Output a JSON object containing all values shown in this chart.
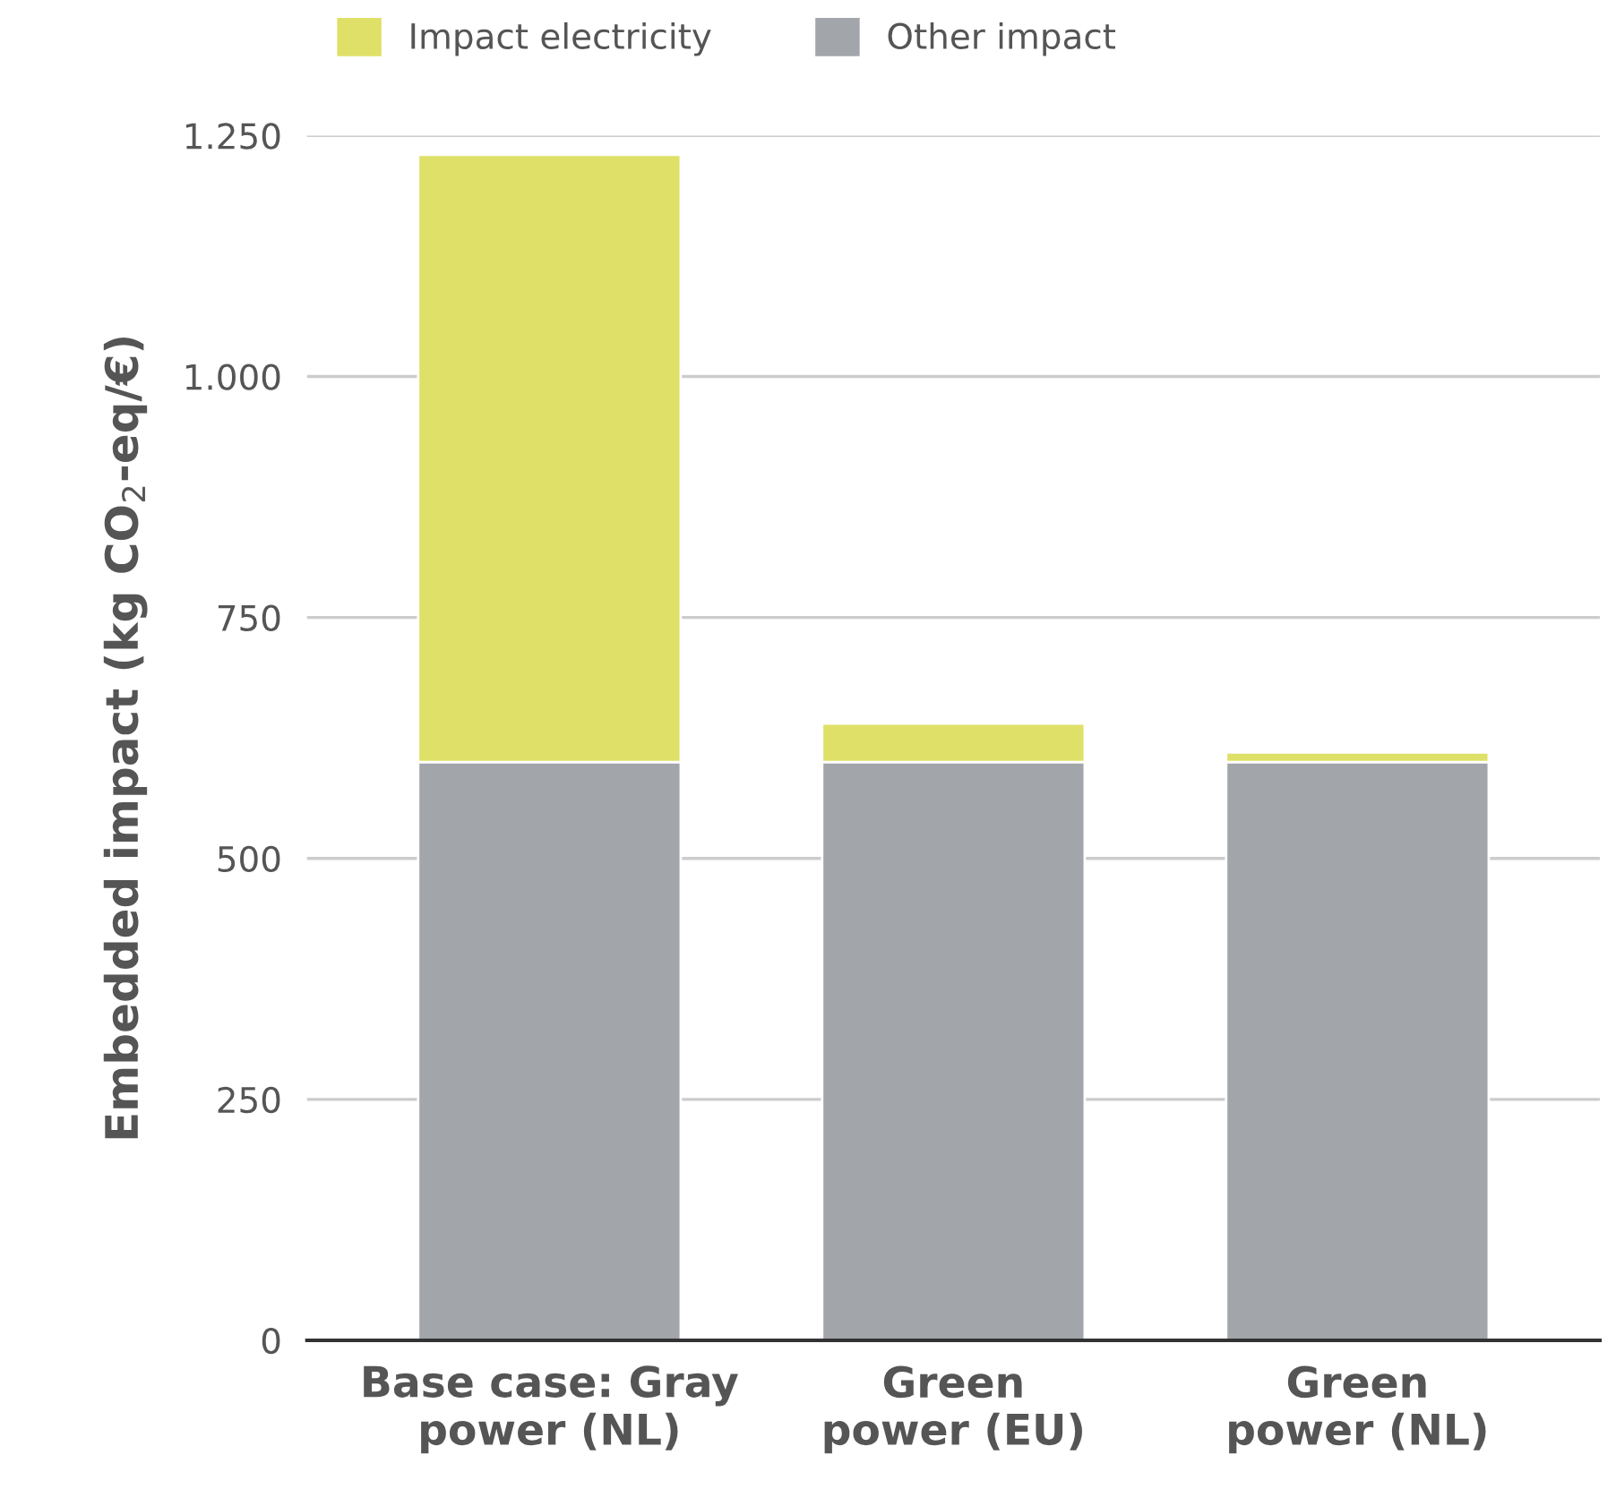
{
  "chart_data": {
    "type": "bar",
    "stacked": true,
    "categories": [
      "Base case: Gray\npower (NL)",
      "Green\npower (EU)",
      "Green\npower (NL)"
    ],
    "series": [
      {
        "name": "Other impact",
        "color": "#a2a6aa",
        "values": [
          600,
          600,
          600
        ]
      },
      {
        "name": "Impact electricity",
        "color": "#dfe067",
        "values": [
          630,
          40,
          10
        ]
      }
    ],
    "ylabel": "Embedded impact (kg CO$_{2}$-eq/€)",
    "ylim": [
      0,
      1250
    ],
    "yticks": [
      0,
      250,
      500,
      750,
      {
        "value": 1000,
        "label": "1.000"
      },
      {
        "value": 1250,
        "label": "1.250"
      }
    ],
    "grid": "y",
    "legend": "top left"
  }
}
